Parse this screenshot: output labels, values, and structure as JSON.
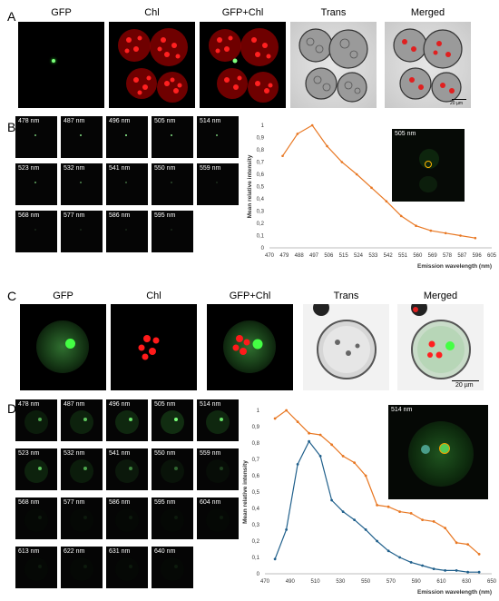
{
  "panelA": {
    "letter": "A",
    "labels": [
      "GFP",
      "Chl",
      "GFP+Chl",
      "Trans",
      "Merged"
    ],
    "scale": "20 µm"
  },
  "panelB": {
    "letter": "B",
    "tiles": [
      "478 nm",
      "487 nm",
      "496 nm",
      "505 nm",
      "514 nm",
      "523 nm",
      "532 nm",
      "541 nm",
      "550 nm",
      "559 nm",
      "568 nm",
      "577 nm",
      "586 nm",
      "595 nm"
    ],
    "inset_label": "505 nm"
  },
  "panelC": {
    "letter": "C",
    "labels": [
      "GFP",
      "Chl",
      "GFP+Chl",
      "Trans",
      "Merged"
    ],
    "scale": "20 µm"
  },
  "panelD": {
    "letter": "D",
    "tiles": [
      "478 nm",
      "487 nm",
      "496 nm",
      "505 nm",
      "514 nm",
      "523 nm",
      "532 nm",
      "541 nm",
      "550 nm",
      "559 nm",
      "568 nm",
      "577 nm",
      "586 nm",
      "595 nm",
      "604 nm",
      "613 nm",
      "622 nm",
      "631 nm",
      "640 nm"
    ],
    "inset_label": "514 nm"
  },
  "chart_data": [
    {
      "type": "line",
      "xlabel": "Emission wavelength (nm)",
      "ylabel": "Mean relative intensity",
      "ylim": [
        0,
        1
      ],
      "yticks": [
        "0",
        "0,1",
        "0,2",
        "0,3",
        "0,4",
        "0,5",
        "0,6",
        "0,7",
        "0,8",
        "0,9",
        "1"
      ],
      "xticks": [
        "470",
        "479",
        "488",
        "497",
        "506",
        "515",
        "524",
        "533",
        "542",
        "551",
        "560",
        "569",
        "578",
        "587",
        "596",
        "605"
      ],
      "xlim": [
        470,
        605
      ],
      "colors": {
        "series": "#e87722"
      },
      "series": [
        {
          "x": [
            478,
            487,
            496,
            505,
            514,
            523,
            532,
            541,
            550,
            559,
            568,
            577,
            586,
            595
          ],
          "values": [
            0.75,
            0.93,
            1.0,
            0.83,
            0.7,
            0.6,
            0.49,
            0.38,
            0.26,
            0.18,
            0.14,
            0.12,
            0.1,
            0.08
          ]
        }
      ]
    },
    {
      "type": "line",
      "xlabel": "Emission wavelength (nm)",
      "ylabel": "Mean relative intensity",
      "ylim": [
        0,
        1
      ],
      "yticks": [
        "0",
        "0,1",
        "0,2",
        "0,3",
        "0,4",
        "0,5",
        "0,6",
        "0,7",
        "0,8",
        "0,9",
        "1"
      ],
      "xticks": [
        "470",
        "490",
        "510",
        "530",
        "550",
        "570",
        "590",
        "610",
        "630",
        "650"
      ],
      "xlim": [
        470,
        650
      ],
      "colors": {
        "orange": "#e87722",
        "blue": "#1f5f8b"
      },
      "series": [
        {
          "color": "orange",
          "x": [
            478,
            487,
            496,
            505,
            514,
            523,
            532,
            541,
            550,
            559,
            568,
            577,
            586,
            595,
            604,
            613,
            622,
            631,
            640
          ],
          "values": [
            0.95,
            1.0,
            0.93,
            0.86,
            0.85,
            0.79,
            0.72,
            0.68,
            0.6,
            0.42,
            0.41,
            0.38,
            0.37,
            0.33,
            0.32,
            0.28,
            0.19,
            0.18,
            0.12
          ]
        },
        {
          "color": "blue",
          "x": [
            478,
            487,
            496,
            505,
            514,
            523,
            532,
            541,
            550,
            559,
            568,
            577,
            586,
            595,
            604,
            613,
            622,
            631,
            640
          ],
          "values": [
            0.09,
            0.27,
            0.67,
            0.81,
            0.72,
            0.45,
            0.38,
            0.33,
            0.27,
            0.2,
            0.14,
            0.1,
            0.07,
            0.05,
            0.03,
            0.02,
            0.02,
            0.01,
            0.01
          ]
        }
      ]
    }
  ]
}
